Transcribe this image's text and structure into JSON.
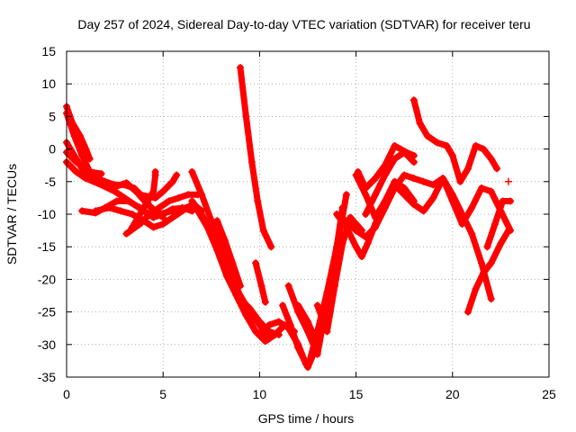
{
  "chart_data": {
    "type": "scatter",
    "title": "Day 257 of 2024, Sidereal Day-to-day VTEC variation (SDTVAR) for receiver teru",
    "xlabel": "GPS time / hours",
    "ylabel": "SDTVAR / TECUs",
    "xlim": [
      0,
      25
    ],
    "ylim": [
      -35,
      15
    ],
    "xticks": [
      0,
      5,
      10,
      15,
      20,
      25
    ],
    "yticks": [
      -35,
      -30,
      -25,
      -20,
      -15,
      -10,
      -5,
      0,
      5,
      10,
      15
    ],
    "grid": true,
    "marker": "+",
    "color": "#ff0000",
    "series": [
      {
        "points": [
          [
            0.0,
            6.5
          ],
          [
            0.3,
            4.0
          ],
          [
            0.7,
            2.0
          ],
          [
            1.0,
            0.0
          ],
          [
            1.2,
            -1.5
          ]
        ]
      },
      {
        "points": [
          [
            0.0,
            5.5
          ],
          [
            0.4,
            2.0
          ],
          [
            0.8,
            -1.0
          ],
          [
            1.2,
            -3.5
          ],
          [
            1.8,
            -3.8
          ]
        ]
      },
      {
        "points": [
          [
            0.0,
            1.0
          ],
          [
            0.5,
            -1.5
          ],
          [
            0.8,
            -3.0
          ],
          [
            1.0,
            -4.0
          ],
          [
            1.6,
            -4.5
          ],
          [
            2.0,
            -5.0
          ],
          [
            2.5,
            -5.5
          ],
          [
            3.0,
            -5.5
          ],
          [
            3.5,
            -6.0
          ],
          [
            4.0,
            -7.5
          ],
          [
            4.5,
            -9.5
          ],
          [
            5.0,
            -10.5
          ]
        ]
      },
      {
        "points": [
          [
            0.0,
            -0.5
          ],
          [
            0.5,
            -2.0
          ],
          [
            1.0,
            -3.0
          ],
          [
            1.5,
            -4.5
          ],
          [
            2.0,
            -5.2
          ],
          [
            2.6,
            -5.7
          ],
          [
            3.1,
            -5.2
          ],
          [
            3.6,
            -6.5
          ],
          [
            4.2,
            -8.5
          ],
          [
            4.8,
            -10.0
          ],
          [
            5.5,
            -9.5
          ],
          [
            6.0,
            -9.0
          ],
          [
            6.5,
            -9.5
          ]
        ]
      },
      {
        "points": [
          [
            0.0,
            -2.0
          ],
          [
            0.5,
            -3.5
          ],
          [
            1.0,
            -4.5
          ],
          [
            1.8,
            -5.5
          ],
          [
            2.5,
            -6.5
          ],
          [
            3.0,
            -7.5
          ],
          [
            3.5,
            -8.5
          ],
          [
            4.0,
            -9.5
          ],
          [
            4.5,
            -10.5
          ]
        ]
      },
      {
        "points": [
          [
            0.8,
            -9.5
          ],
          [
            1.5,
            -9.8
          ],
          [
            2.0,
            -9.0
          ],
          [
            2.6,
            -8.0
          ],
          [
            3.2,
            -8.0
          ],
          [
            3.8,
            -9.0
          ],
          [
            4.5,
            -10.5
          ],
          [
            5.0,
            -10.0
          ],
          [
            5.5,
            -9.2
          ],
          [
            6.2,
            -9.0
          ],
          [
            6.8,
            -9.0
          ],
          [
            7.0,
            -9.5
          ]
        ]
      },
      {
        "points": [
          [
            1.5,
            -9.5
          ],
          [
            2.2,
            -9.0
          ],
          [
            2.8,
            -9.5
          ],
          [
            3.4,
            -10.0
          ],
          [
            4.0,
            -11.0
          ],
          [
            4.5,
            -12.0
          ],
          [
            5.0,
            -11.5
          ],
          [
            5.5,
            -10.5
          ],
          [
            6.0,
            -9.5
          ],
          [
            6.5,
            -8.5
          ],
          [
            6.8,
            -9.0
          ]
        ]
      },
      {
        "points": [
          [
            3.1,
            -13.0
          ],
          [
            3.8,
            -11.5
          ],
          [
            4.3,
            -10.0
          ],
          [
            4.8,
            -9.0
          ],
          [
            5.3,
            -8.0
          ],
          [
            5.8,
            -7.5
          ],
          [
            6.3,
            -7.0
          ],
          [
            6.8,
            -7.0
          ]
        ]
      },
      {
        "points": [
          [
            3.3,
            -12.5
          ],
          [
            3.8,
            -10.0
          ],
          [
            4.2,
            -8.0
          ],
          [
            4.5,
            -6.5
          ],
          [
            4.6,
            -4.0
          ],
          [
            4.6,
            -3.5
          ]
        ]
      },
      {
        "points": [
          [
            3.8,
            -7.0
          ],
          [
            4.6,
            -7.5
          ],
          [
            5.0,
            -6.5
          ],
          [
            5.5,
            -5.0
          ],
          [
            5.7,
            -4.0
          ]
        ]
      },
      {
        "points": [
          [
            6.5,
            -3.5
          ],
          [
            7.0,
            -7.0
          ],
          [
            7.5,
            -11.0
          ],
          [
            8.0,
            -15.0
          ],
          [
            8.5,
            -19.5
          ],
          [
            9.0,
            -22.5
          ],
          [
            9.5,
            -25.0
          ],
          [
            10.0,
            -27.0
          ],
          [
            10.4,
            -29.0
          ]
        ]
      },
      {
        "points": [
          [
            6.5,
            -8.0
          ],
          [
            7.0,
            -10.0
          ],
          [
            7.5,
            -13.0
          ],
          [
            8.0,
            -17.0
          ],
          [
            8.5,
            -20.5
          ],
          [
            9.0,
            -23.0
          ],
          [
            9.5,
            -24.5
          ],
          [
            10.0,
            -26.5
          ],
          [
            10.5,
            -28.0
          ],
          [
            11.0,
            -28.5
          ]
        ]
      },
      {
        "points": [
          [
            6.8,
            -9.5
          ],
          [
            7.3,
            -12.0
          ],
          [
            7.8,
            -15.5
          ],
          [
            8.3,
            -19.5
          ],
          [
            8.8,
            -22.5
          ],
          [
            9.3,
            -25.5
          ],
          [
            9.8,
            -28.0
          ],
          [
            10.3,
            -29.5
          ],
          [
            10.8,
            -28.5
          ],
          [
            11.3,
            -27.0
          ],
          [
            11.8,
            -28.0
          ]
        ]
      },
      {
        "points": [
          [
            7.8,
            -11.0
          ],
          [
            8.2,
            -14.0
          ],
          [
            8.6,
            -17.5
          ],
          [
            9.0,
            -21.0
          ]
        ]
      },
      {
        "points": [
          [
            9.0,
            12.5
          ],
          [
            9.3,
            5.0
          ],
          [
            9.6,
            -2.0
          ],
          [
            9.9,
            -8.0
          ],
          [
            10.2,
            -12.5
          ],
          [
            10.6,
            -15.0
          ]
        ]
      },
      {
        "points": [
          [
            9.8,
            -17.5
          ],
          [
            10.1,
            -21.0
          ],
          [
            10.3,
            -23.5
          ]
        ]
      },
      {
        "points": [
          [
            10.5,
            -27.0
          ],
          [
            11.0,
            -26.5
          ],
          [
            11.5,
            -27.5
          ],
          [
            12.0,
            -30.0
          ],
          [
            12.4,
            -33.0
          ],
          [
            12.6,
            -32.5
          ],
          [
            13.0,
            -28.0
          ],
          [
            13.5,
            -22.0
          ]
        ]
      },
      {
        "points": [
          [
            11.2,
            -24.0
          ],
          [
            11.6,
            -27.0
          ],
          [
            12.0,
            -30.5
          ],
          [
            12.5,
            -33.5
          ],
          [
            13.0,
            -30.0
          ],
          [
            13.5,
            -23.0
          ],
          [
            14.0,
            -15.0
          ],
          [
            14.3,
            -9.0
          ]
        ]
      },
      {
        "points": [
          [
            11.5,
            -21.0
          ],
          [
            12.0,
            -25.0
          ],
          [
            12.5,
            -28.0
          ],
          [
            13.0,
            -31.5
          ],
          [
            13.4,
            -25.0
          ],
          [
            13.8,
            -18.0
          ],
          [
            14.2,
            -12.0
          ],
          [
            14.5,
            -7.0
          ]
        ]
      },
      {
        "points": [
          [
            12.0,
            -24.0
          ],
          [
            12.5,
            -26.5
          ],
          [
            13.0,
            -30.0
          ],
          [
            13.5,
            -22.0
          ],
          [
            14.0,
            -15.0
          ]
        ]
      },
      {
        "points": [
          [
            13.0,
            -24.0
          ],
          [
            13.5,
            -28.0
          ],
          [
            13.9,
            -21.0
          ],
          [
            14.3,
            -14.5
          ],
          [
            14.7,
            -10.5
          ],
          [
            15.0,
            -11.5
          ],
          [
            15.3,
            -12.5
          ]
        ]
      },
      {
        "points": [
          [
            14.0,
            -10.0
          ],
          [
            14.5,
            -12.0
          ],
          [
            15.0,
            -15.0
          ],
          [
            15.3,
            -16.5
          ],
          [
            15.6,
            -14.5
          ],
          [
            16.0,
            -11.5
          ],
          [
            16.5,
            -8.0
          ],
          [
            17.0,
            -5.0
          ],
          [
            17.5,
            -6.0
          ],
          [
            18.0,
            -8.0
          ]
        ]
      },
      {
        "points": [
          [
            14.5,
            -11.0
          ],
          [
            15.0,
            -12.5
          ],
          [
            15.5,
            -13.5
          ],
          [
            16.0,
            -12.0
          ],
          [
            16.5,
            -9.0
          ],
          [
            17.0,
            -6.0
          ],
          [
            17.5,
            -4.0
          ],
          [
            18.0,
            -4.5
          ],
          [
            18.5,
            -5.0
          ],
          [
            19.0,
            -5.5
          ],
          [
            19.5,
            -4.5
          ],
          [
            20.0,
            -7.0
          ],
          [
            20.5,
            -10.0
          ],
          [
            21.0,
            -13.0
          ],
          [
            21.5,
            -17.5
          ],
          [
            22.0,
            -23.0
          ]
        ]
      },
      {
        "points": [
          [
            15.0,
            -4.0
          ],
          [
            15.5,
            -7.0
          ],
          [
            16.0,
            -10.5
          ],
          [
            16.5,
            -8.0
          ],
          [
            17.0,
            -5.5
          ],
          [
            17.5,
            -7.0
          ],
          [
            18.0,
            -8.5
          ],
          [
            18.5,
            -9.5
          ],
          [
            19.0,
            -7.5
          ],
          [
            19.5,
            -4.5
          ],
          [
            20.0,
            -8.0
          ],
          [
            20.5,
            -11.5
          ],
          [
            21.0,
            -9.0
          ],
          [
            21.5,
            -6.0
          ],
          [
            22.0,
            -6.5
          ],
          [
            22.5,
            -9.5
          ],
          [
            23.0,
            -12.5
          ]
        ]
      },
      {
        "points": [
          [
            15.1,
            -3.5
          ],
          [
            15.5,
            -6.0
          ],
          [
            16.0,
            -4.5
          ],
          [
            16.5,
            -2.5
          ],
          [
            17.0,
            0.5
          ],
          [
            17.3,
            0.0
          ],
          [
            17.6,
            -0.5
          ],
          [
            18.0,
            -1.0
          ]
        ]
      },
      {
        "points": [
          [
            15.5,
            -10.0
          ],
          [
            16.0,
            -7.0
          ],
          [
            16.5,
            -4.0
          ],
          [
            17.0,
            -1.5
          ],
          [
            17.5,
            -0.5
          ],
          [
            18.0,
            -2.0
          ]
        ]
      },
      {
        "points": [
          [
            18.0,
            7.5
          ],
          [
            18.3,
            4.0
          ],
          [
            18.7,
            2.0
          ],
          [
            19.2,
            1.0
          ],
          [
            19.7,
            0.5
          ],
          [
            20.0,
            -1.0
          ],
          [
            20.4,
            -5.0
          ],
          [
            20.8,
            -3.0
          ],
          [
            21.2,
            0.5
          ],
          [
            21.6,
            0.0
          ],
          [
            22.0,
            -1.5
          ],
          [
            22.3,
            -3.0
          ]
        ]
      },
      {
        "points": [
          [
            20.8,
            -25.0
          ],
          [
            21.2,
            -21.5
          ],
          [
            21.6,
            -19.0
          ],
          [
            22.0,
            -17.5
          ],
          [
            22.5,
            -14.5
          ],
          [
            22.9,
            -12.5
          ]
        ]
      },
      {
        "points": [
          [
            21.8,
            -15.0
          ],
          [
            22.2,
            -11.5
          ],
          [
            22.6,
            -8.0
          ],
          [
            23.0,
            -8.0
          ]
        ]
      },
      {
        "points": [
          [
            22.9,
            -5.0
          ]
        ]
      }
    ]
  }
}
